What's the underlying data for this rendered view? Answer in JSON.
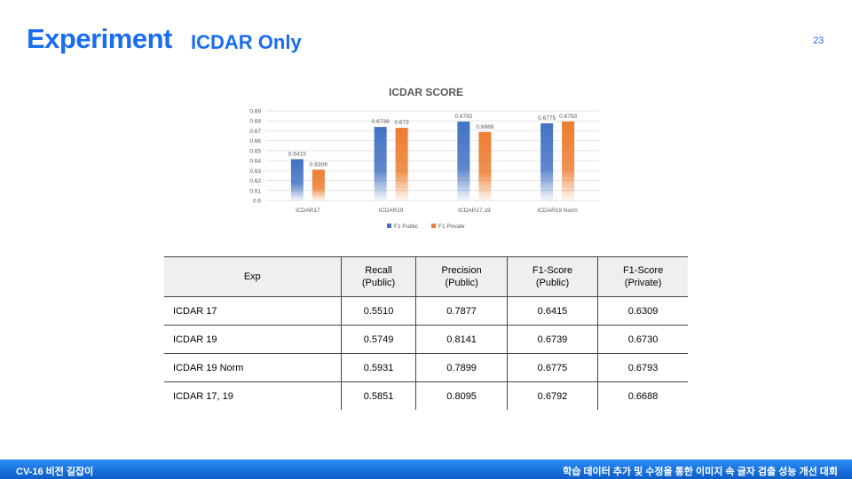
{
  "slide": {
    "title": "Experiment",
    "subtitle": "ICDAR Only",
    "page_number": "23",
    "accent_color": "#1a6cf0"
  },
  "chart_data": {
    "type": "bar",
    "title": "ICDAR SCORE",
    "categories": [
      "ICDAR17",
      "ICDAR19",
      "ICDAR17,19",
      "ICDAR19 Norm"
    ],
    "series": [
      {
        "name": "F1 Public",
        "color": "#4472c4",
        "values": [
          0.6415,
          0.6739,
          0.6792,
          0.6775
        ],
        "labels": [
          "0.6415",
          "0.6739",
          "0.6792",
          "0.6775"
        ]
      },
      {
        "name": "F1 Private",
        "color": "#ed7d31",
        "values": [
          0.6309,
          0.673,
          0.6688,
          0.6793
        ],
        "labels": [
          "0.6309",
          "0.673",
          "0.6688",
          "0.6793"
        ]
      }
    ],
    "ylim": [
      0.6,
      0.69
    ],
    "yticks": [
      "0.6",
      "0.61",
      "0.62",
      "0.63",
      "0.64",
      "0.65",
      "0.66",
      "0.67",
      "0.68",
      "0.69"
    ],
    "grid": true,
    "legend": "bottom"
  },
  "table": {
    "headers": [
      [
        "Exp"
      ],
      [
        "Recall",
        "(Public)"
      ],
      [
        "Precision",
        "(Public)"
      ],
      [
        "F1-Score",
        "(Public)"
      ],
      [
        "F1-Score",
        "(Private)"
      ]
    ],
    "rows": [
      [
        "ICDAR 17",
        "0.5510",
        "0.7877",
        "0.6415",
        "0.6309"
      ],
      [
        "ICDAR 19",
        "0.5749",
        "0.8141",
        "0.6739",
        "0.6730"
      ],
      [
        "ICDAR 19 Norm",
        "0.5931",
        "0.7899",
        "0.6775",
        "0.6793"
      ],
      [
        "ICDAR 17, 19",
        "0.5851",
        "0.8095",
        "0.6792",
        "0.6688"
      ]
    ]
  },
  "footer": {
    "left": "CV-16 비전 길잡이",
    "right": "학습 데이터 추가 및 수정을 통한 이미지 속 글자 검출 성능 개선 대회"
  }
}
